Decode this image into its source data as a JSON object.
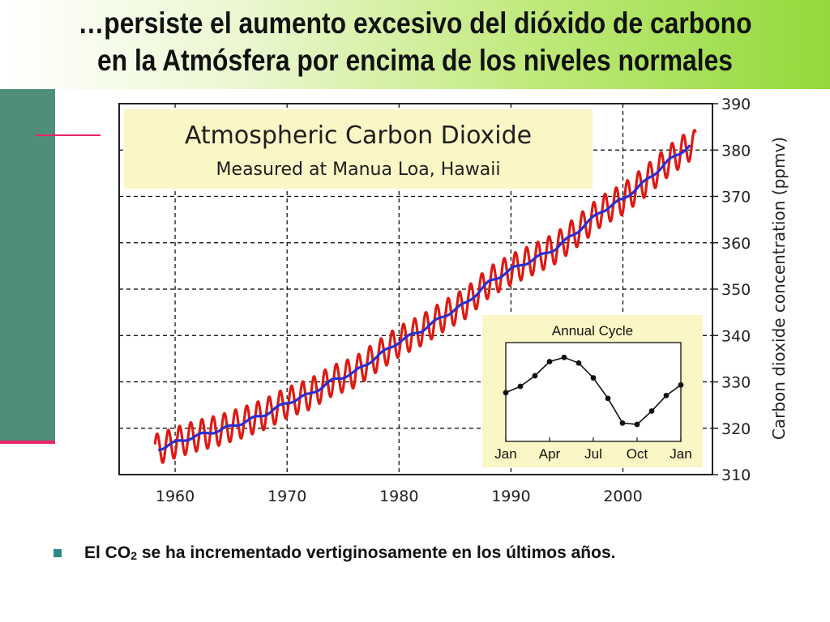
{
  "slide": {
    "title_line1": "…persiste el aumento excesivo del dióxido de carbono",
    "title_line2": "en la Atmósfera por encima de los niveles normales",
    "bullet_prefix": "El CO",
    "bullet_subscript": "2",
    "bullet_rest": " se ha incrementado vertiginosamente en los últimos años."
  },
  "colors": {
    "seasonal_line": "#dd1a12",
    "trend_line": "#2a2fd0",
    "title_box_bg": "#fbf6c5",
    "inset_bg": "#fbf6c5",
    "grid": "#000000",
    "bullet": "#2b8a8a"
  },
  "chart_data": [
    {
      "type": "line",
      "title": "Atmospheric Carbon Dioxide",
      "subtitle": "Measured at Manua Loa, Hawaii",
      "xlabel": "",
      "ylabel": "Carbon dioxide concentration (ppmv)",
      "xlim": [
        1955,
        2008
      ],
      "ylim": [
        310,
        390
      ],
      "x_ticks": [
        1960,
        1970,
        1980,
        1990,
        2000
      ],
      "y_ticks": [
        310,
        320,
        330,
        340,
        350,
        360,
        370,
        380,
        390
      ],
      "grid": true,
      "y_axis_position": "right",
      "series": [
        {
          "role": "seasonal",
          "seasonal_amplitude_ppmv": 3.3,
          "x": [
            1958.2,
            2006.5
          ],
          "values": [
            316,
            385
          ]
        },
        {
          "role": "trend",
          "x": [
            1958.5,
            1960,
            1962,
            1964,
            1966,
            1968,
            1970,
            1972,
            1974,
            1976,
            1978,
            1980,
            1982,
            1984,
            1986,
            1988,
            1990,
            1992,
            1994,
            1996,
            1998,
            2000,
            2002,
            2004,
            2006
          ],
          "values": [
            315.5,
            316.9,
            318.4,
            319.6,
            321.2,
            323.0,
            325.5,
            327.3,
            330.2,
            332.0,
            335.4,
            338.7,
            341.1,
            344.2,
            347.0,
            351.4,
            354.2,
            356.4,
            358.8,
            362.6,
            366.7,
            369.4,
            373.2,
            377.5,
            381.0
          ]
        }
      ]
    },
    {
      "type": "line",
      "title": "Annual Cycle",
      "categories": [
        "Jan",
        "Feb",
        "Mar",
        "Apr",
        "May",
        "Jun",
        "Jul",
        "Aug",
        "Sep",
        "Oct",
        "Nov",
        "Dec",
        "Jan"
      ],
      "x_tick_labels": [
        "Jan",
        "Apr",
        "Jul",
        "Oct",
        "Jan"
      ],
      "values": [
        0.9,
        1.8,
        3.3,
        5.3,
        5.9,
        5.1,
        3.0,
        0.1,
        -3.4,
        -3.6,
        -1.7,
        0.5,
        2.0
      ],
      "ylim": [
        -6,
        8
      ]
    }
  ]
}
